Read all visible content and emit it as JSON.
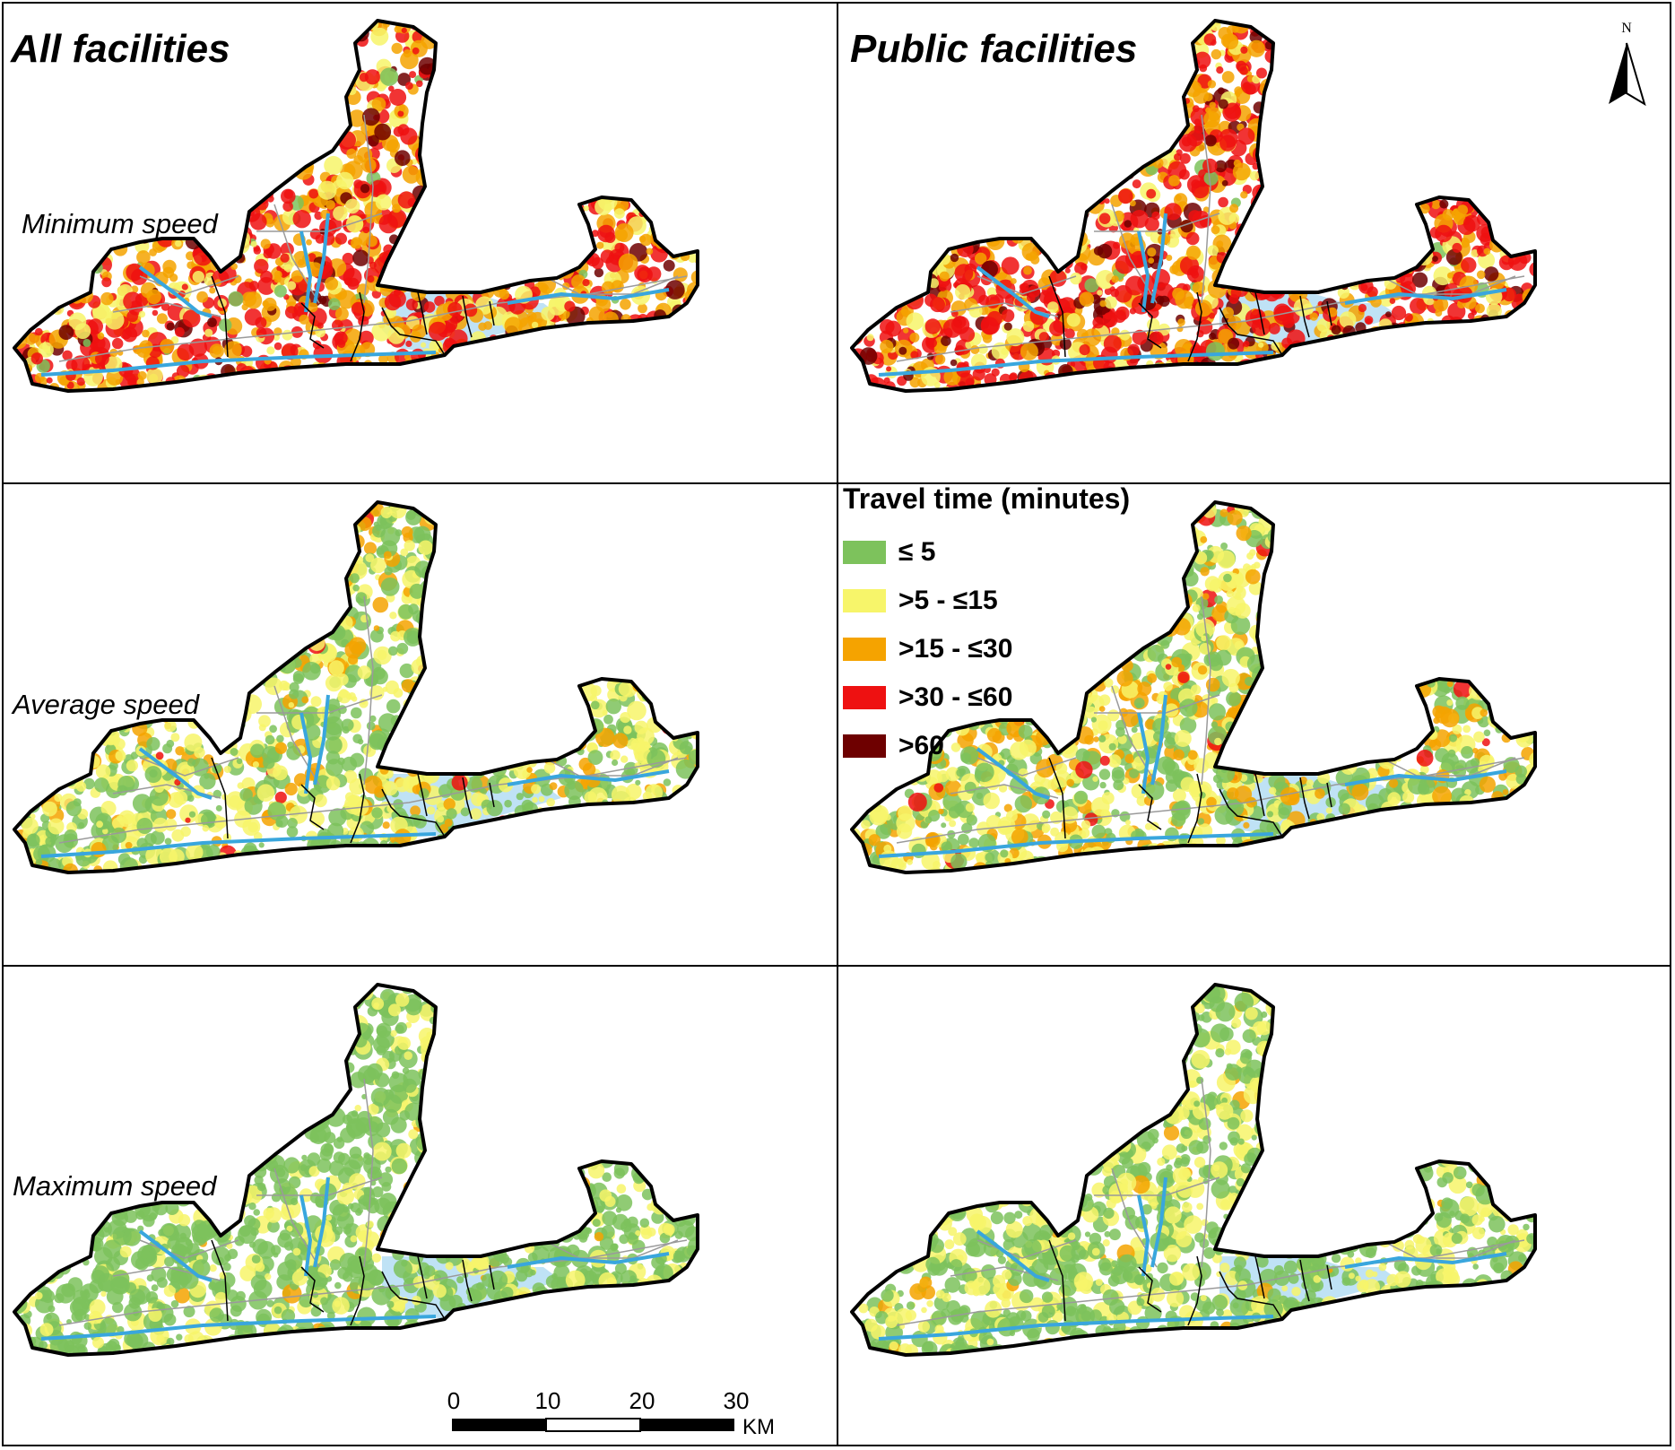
{
  "columns": [
    {
      "title": "All facilities"
    },
    {
      "title": "Public facilities"
    }
  ],
  "rows": [
    {
      "label": "Minimum speed"
    },
    {
      "label": "Average speed"
    },
    {
      "label": "Maximum speed"
    }
  ],
  "legend": {
    "title": "Travel time (minutes)",
    "items": [
      {
        "label": "≤ 5",
        "color": "#7dc25c"
      },
      {
        "label": ">5 - ≤15",
        "color": "#f7f56a"
      },
      {
        "label": ">15 - ≤30",
        "color": "#f5a300"
      },
      {
        "label": ">30 - ≤60",
        "color": "#ee1111"
      },
      {
        "label": ">60",
        "color": "#6e0000"
      }
    ]
  },
  "north_arrow": {
    "label": "N"
  },
  "scale_bar": {
    "ticks": [
      "0",
      "10",
      "20",
      "30"
    ],
    "unit": "KM"
  },
  "map_colors": {
    "water": "#bfe2f5",
    "river": "#39a6dd",
    "boundary": "#000000",
    "roads": "#9a9a9a"
  }
}
